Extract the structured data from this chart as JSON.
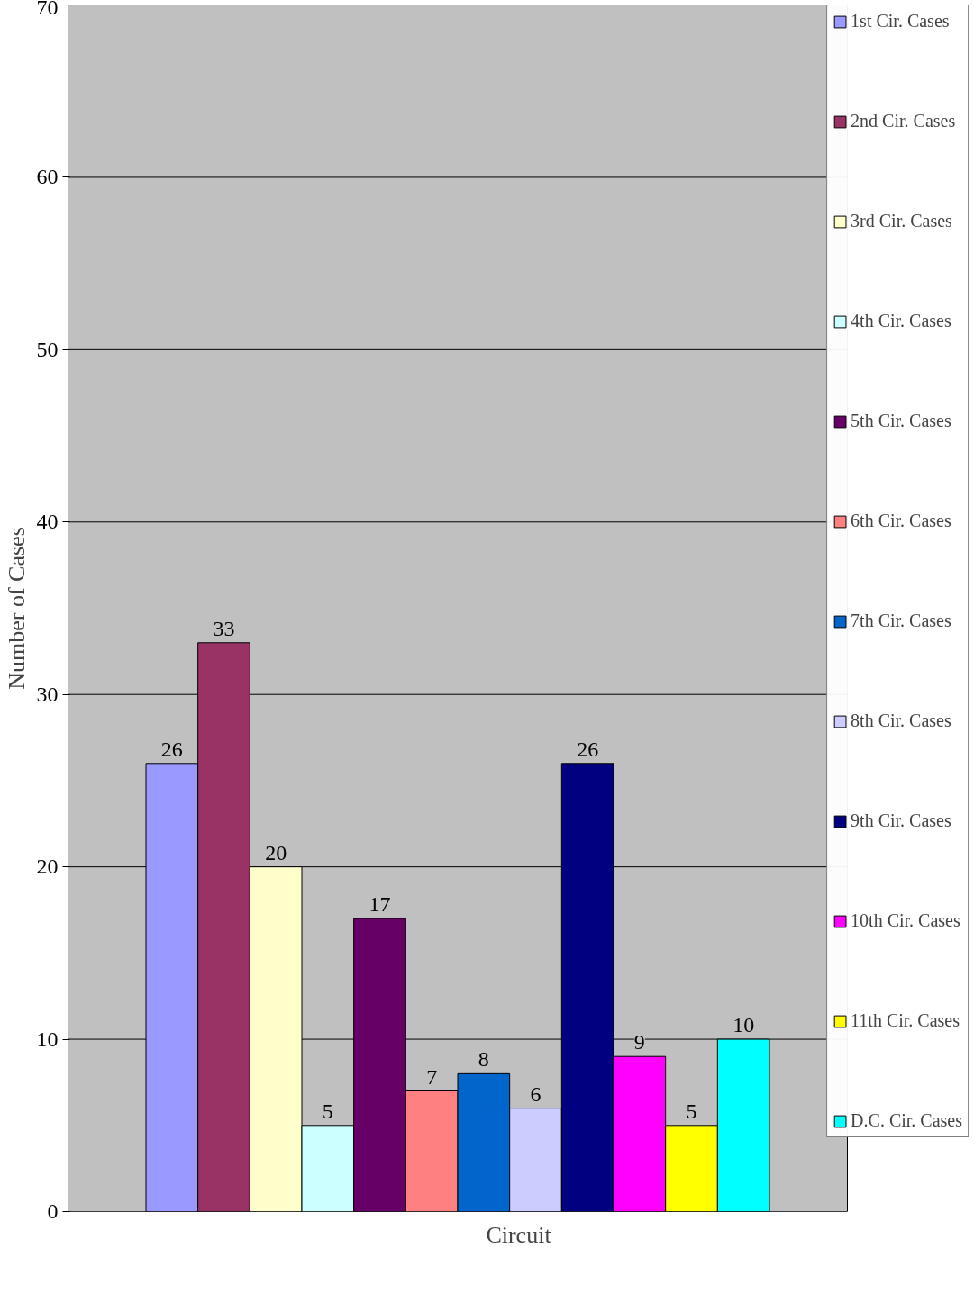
{
  "chart_data": {
    "type": "bar",
    "xlabel": "Circuit",
    "ylabel": "Number of Cases",
    "categories": [
      null
    ],
    "ylim": [
      0,
      70
    ],
    "yticks": [
      0,
      10,
      20,
      30,
      40,
      50,
      60,
      70
    ],
    "grid": "y",
    "legend": "right",
    "data_labels": true,
    "series": [
      {
        "name": "1st Cir. Cases",
        "color": "#9999ff",
        "values": [
          26
        ]
      },
      {
        "name": "2nd Cir. Cases",
        "color": "#993366",
        "values": [
          33
        ]
      },
      {
        "name": "3rd Cir. Cases",
        "color": "#ffffcc",
        "values": [
          20
        ]
      },
      {
        "name": "4th Cir. Cases",
        "color": "#ccffff",
        "values": [
          5
        ]
      },
      {
        "name": "5th Cir. Cases",
        "color": "#660066",
        "values": [
          17
        ]
      },
      {
        "name": "6th Cir. Cases",
        "color": "#ff8080",
        "values": [
          7
        ]
      },
      {
        "name": "7th Cir. Cases",
        "color": "#0066cc",
        "values": [
          8
        ]
      },
      {
        "name": "8th Cir. Cases",
        "color": "#ccccff",
        "values": [
          6
        ]
      },
      {
        "name": "9th Cir. Cases",
        "color": "#000080",
        "values": [
          26
        ]
      },
      {
        "name": "10th Cir. Cases",
        "color": "#ff00ff",
        "values": [
          9
        ]
      },
      {
        "name": "11th Cir. Cases",
        "color": "#ffff00",
        "values": [
          5
        ]
      },
      {
        "name": "D.C. Cir. Cases",
        "color": "#00ffff",
        "values": [
          10
        ]
      }
    ]
  }
}
